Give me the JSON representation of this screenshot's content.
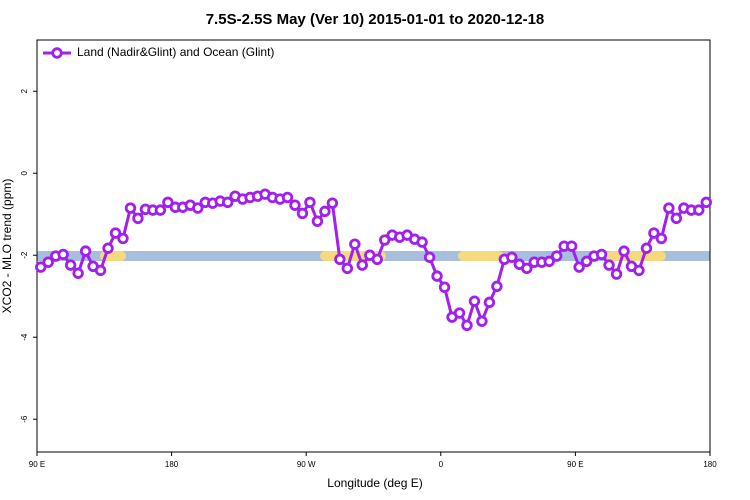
{
  "chart_data": {
    "type": "line",
    "title": "7.5S-2.5S May (Ver 10)   2015-01-01 to 2020-12-18",
    "x_label": "Longitude (deg E)",
    "y_label": "XCO2 - MLO trend (ppm)",
    "x": [
      92.5,
      97.5,
      102.5,
      107.5,
      112.5,
      117.5,
      122.5,
      127.5,
      132.5,
      137.5,
      142.5,
      147.5,
      152.5,
      157.5,
      162.5,
      167.5,
      172.5,
      177.5,
      182.5,
      187.5,
      192.5,
      197.5,
      202.5,
      207.5,
      212.5,
      217.5,
      222.5,
      227.5,
      232.5,
      237.5,
      242.5,
      247.5,
      252.5,
      257.5,
      262.5,
      267.5,
      272.5,
      277.5,
      282.5,
      287.5,
      292.5,
      297.5,
      302.5,
      307.5,
      312.5,
      317.5,
      322.5,
      327.5,
      332.5,
      337.5,
      342.5,
      347.5,
      352.5,
      357.5,
      362.5,
      367.5,
      372.5,
      377.5,
      382.5,
      387.5,
      392.5,
      397.5,
      402.5,
      407.5,
      412.5,
      417.5,
      422.5,
      427.5,
      432.5,
      437.5,
      442.5,
      447.5,
      452.5,
      457.5,
      462.5,
      467.5,
      472.5,
      477.5,
      482.5,
      487.5,
      492.5,
      497.5,
      502.5,
      507.5,
      512.5,
      517.5,
      522.5,
      527.5,
      532.5,
      537.5
    ],
    "series": [
      {
        "name": "Land (Nadir&Glint) and Ocean (Glint)",
        "color": "#a020f0",
        "values": [
          -2.29,
          -2.17,
          -2.02,
          -1.98,
          -2.24,
          -2.44,
          -1.9,
          -2.27,
          -2.37,
          -1.83,
          -1.46,
          -1.59,
          -0.85,
          -1.1,
          -0.88,
          -0.9,
          -0.9,
          -0.71,
          -0.83,
          -0.83,
          -0.78,
          -0.85,
          -0.71,
          -0.73,
          -0.68,
          -0.71,
          -0.56,
          -0.63,
          -0.59,
          -0.56,
          -0.51,
          -0.59,
          -0.63,
          -0.59,
          -0.78,
          -0.98,
          -0.71,
          -1.17,
          -0.93,
          -0.73,
          -2.1,
          -2.32,
          -1.73,
          -2.24,
          -2.0,
          -2.1,
          -1.63,
          -1.51,
          -1.56,
          -1.51,
          -1.61,
          -1.68,
          -2.05,
          -2.51,
          -2.78,
          -3.51,
          -3.41,
          -3.71,
          -3.12,
          -3.61,
          -3.15,
          -2.76,
          -2.1,
          -2.05,
          -2.22,
          -2.32,
          -2.17,
          -2.17,
          -2.15,
          -2.02,
          -1.78,
          -1.78,
          -2.29,
          -2.15,
          -2.02,
          -1.98,
          -2.24,
          -2.46,
          -1.9,
          -2.27,
          -2.37,
          -1.83,
          -1.46,
          -1.59,
          -0.85,
          -1.1,
          -0.85,
          -0.9,
          -0.9,
          -0.71
        ]
      }
    ],
    "xlim": [
      90,
      540
    ],
    "xticks": [
      {
        "value": 90,
        "label": "90 E"
      },
      180,
      {
        "value": 270,
        "label": "90 W"
      },
      {
        "value": 360,
        "label": "0"
      },
      {
        "value": 450,
        "label": "90 E"
      },
      {
        "value": 540,
        "label": "180"
      }
    ],
    "ylim": [
      -6.8,
      3.25
    ],
    "yticks": [
      -6,
      -4,
      -2,
      0,
      2
    ],
    "grid": false,
    "legend": "topleft"
  }
}
